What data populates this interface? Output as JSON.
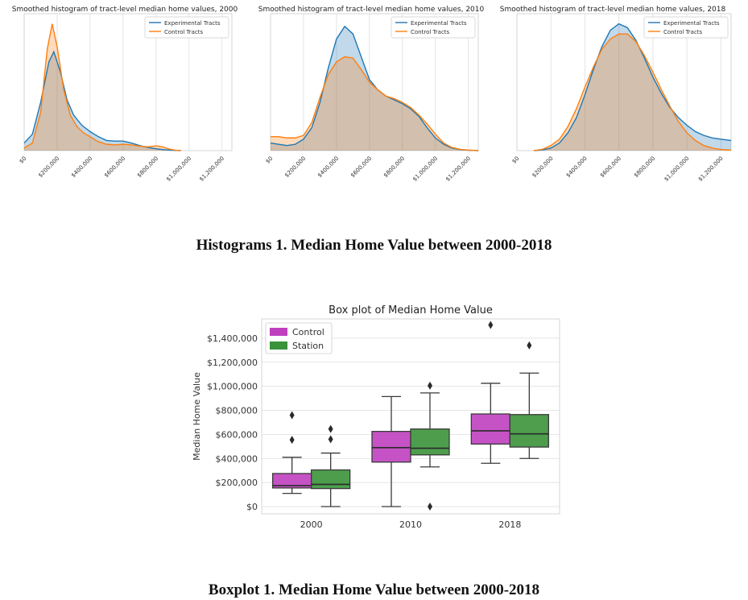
{
  "chart_data": [
    {
      "type": "area",
      "title": "Smoothed histogram of tract-level median home values, 2000",
      "xlabel": "",
      "ylabel": "",
      "xlim": [
        0,
        1260000
      ],
      "x_tick_labels": [
        "$0",
        "$200,000",
        "$400,000",
        "$600,000",
        "$800,000",
        "$1,000,000",
        "$1,200,000"
      ],
      "x_ticks": [
        0,
        200000,
        400000,
        600000,
        800000,
        1000000,
        1200000
      ],
      "grid": true,
      "legend": "top-right",
      "series": [
        {
          "name": "Experimental Tracts",
          "color": "#1f77b4",
          "points": [
            [
              0,
              0.06
            ],
            [
              50000,
              0.13
            ],
            [
              100000,
              0.38
            ],
            [
              150000,
              0.7
            ],
            [
              180000,
              0.78
            ],
            [
              220000,
              0.62
            ],
            [
              260000,
              0.4
            ],
            [
              300000,
              0.28
            ],
            [
              350000,
              0.2
            ],
            [
              400000,
              0.15
            ],
            [
              450000,
              0.11
            ],
            [
              500000,
              0.08
            ],
            [
              550000,
              0.075
            ],
            [
              600000,
              0.075
            ],
            [
              650000,
              0.06
            ],
            [
              700000,
              0.04
            ],
            [
              750000,
              0.025
            ],
            [
              800000,
              0.015
            ],
            [
              850000,
              0.007
            ],
            [
              900000,
              0.003
            ],
            [
              950000,
              0
            ]
          ]
        },
        {
          "name": "Control Tracts",
          "color": "#ff7f0e",
          "points": [
            [
              0,
              0.02
            ],
            [
              50000,
              0.06
            ],
            [
              100000,
              0.3
            ],
            [
              140000,
              0.8
            ],
            [
              170000,
              1.0
            ],
            [
              200000,
              0.82
            ],
            [
              240000,
              0.48
            ],
            [
              280000,
              0.28
            ],
            [
              320000,
              0.19
            ],
            [
              360000,
              0.14
            ],
            [
              400000,
              0.11
            ],
            [
              450000,
              0.07
            ],
            [
              500000,
              0.05
            ],
            [
              550000,
              0.045
            ],
            [
              600000,
              0.05
            ],
            [
              650000,
              0.045
            ],
            [
              700000,
              0.035
            ],
            [
              750000,
              0.03
            ],
            [
              800000,
              0.038
            ],
            [
              840000,
              0.03
            ],
            [
              880000,
              0.012
            ],
            [
              920000,
              0.003
            ],
            [
              950000,
              0
            ]
          ]
        }
      ]
    },
    {
      "type": "area",
      "title": "Smoothed histogram of tract-level median home values, 2010",
      "xlabel": "",
      "ylabel": "",
      "xlim": [
        0,
        1260000
      ],
      "x_tick_labels": [
        "$0",
        "$200,000",
        "$400,000",
        "$600,000",
        "$800,000",
        "$1,000,000",
        "$1,200,000"
      ],
      "x_ticks": [
        0,
        200000,
        400000,
        600000,
        800000,
        1000000,
        1200000
      ],
      "grid": true,
      "legend": "top-right",
      "series": [
        {
          "name": "Experimental Tracts",
          "color": "#1f77b4",
          "points": [
            [
              0,
              0.06
            ],
            [
              50000,
              0.05
            ],
            [
              100000,
              0.04
            ],
            [
              150000,
              0.05
            ],
            [
              200000,
              0.09
            ],
            [
              250000,
              0.18
            ],
            [
              300000,
              0.38
            ],
            [
              350000,
              0.65
            ],
            [
              400000,
              0.88
            ],
            [
              450000,
              0.98
            ],
            [
              500000,
              0.92
            ],
            [
              550000,
              0.74
            ],
            [
              600000,
              0.56
            ],
            [
              650000,
              0.48
            ],
            [
              700000,
              0.43
            ],
            [
              750000,
              0.4
            ],
            [
              800000,
              0.37
            ],
            [
              850000,
              0.33
            ],
            [
              900000,
              0.27
            ],
            [
              950000,
              0.18
            ],
            [
              1000000,
              0.1
            ],
            [
              1050000,
              0.05
            ],
            [
              1100000,
              0.02
            ],
            [
              1150000,
              0.008
            ],
            [
              1200000,
              0.003
            ],
            [
              1260000,
              0
            ]
          ]
        },
        {
          "name": "Control Tracts",
          "color": "#ff7f0e",
          "points": [
            [
              0,
              0.11
            ],
            [
              50000,
              0.11
            ],
            [
              100000,
              0.1
            ],
            [
              150000,
              0.1
            ],
            [
              200000,
              0.12
            ],
            [
              250000,
              0.22
            ],
            [
              300000,
              0.42
            ],
            [
              350000,
              0.6
            ],
            [
              400000,
              0.7
            ],
            [
              450000,
              0.74
            ],
            [
              500000,
              0.73
            ],
            [
              550000,
              0.64
            ],
            [
              600000,
              0.54
            ],
            [
              650000,
              0.48
            ],
            [
              700000,
              0.43
            ],
            [
              750000,
              0.41
            ],
            [
              800000,
              0.38
            ],
            [
              850000,
              0.34
            ],
            [
              900000,
              0.28
            ],
            [
              950000,
              0.21
            ],
            [
              1000000,
              0.13
            ],
            [
              1050000,
              0.06
            ],
            [
              1100000,
              0.025
            ],
            [
              1150000,
              0.01
            ],
            [
              1200000,
              0.004
            ],
            [
              1260000,
              0
            ]
          ]
        }
      ]
    },
    {
      "type": "area",
      "title": "Smoothed histogram of tract-level median home values, 2018",
      "xlabel": "",
      "ylabel": "",
      "xlim": [
        0,
        1260000
      ],
      "x_tick_labels": [
        "$0",
        "$200,000",
        "$400,000",
        "$600,000",
        "$800,000",
        "$1,000,000",
        "$1,200,000"
      ],
      "x_ticks": [
        0,
        200000,
        400000,
        600000,
        800000,
        1000000,
        1200000
      ],
      "grid": true,
      "legend": "top-right",
      "series": [
        {
          "name": "Experimental Tracts",
          "color": "#1f77b4",
          "points": [
            [
              100000,
              0
            ],
            [
              150000,
              0.005
            ],
            [
              200000,
              0.02
            ],
            [
              250000,
              0.06
            ],
            [
              300000,
              0.14
            ],
            [
              350000,
              0.26
            ],
            [
              400000,
              0.44
            ],
            [
              450000,
              0.64
            ],
            [
              500000,
              0.82
            ],
            [
              550000,
              0.95
            ],
            [
              600000,
              1.0
            ],
            [
              650000,
              0.97
            ],
            [
              700000,
              0.87
            ],
            [
              750000,
              0.73
            ],
            [
              800000,
              0.58
            ],
            [
              850000,
              0.45
            ],
            [
              900000,
              0.34
            ],
            [
              950000,
              0.26
            ],
            [
              1000000,
              0.2
            ],
            [
              1050000,
              0.15
            ],
            [
              1100000,
              0.12
            ],
            [
              1150000,
              0.1
            ],
            [
              1200000,
              0.09
            ],
            [
              1260000,
              0.08
            ]
          ]
        },
        {
          "name": "Control Tracts",
          "color": "#ff7f0e",
          "points": [
            [
              100000,
              0
            ],
            [
              150000,
              0.01
            ],
            [
              200000,
              0.04
            ],
            [
              250000,
              0.09
            ],
            [
              300000,
              0.19
            ],
            [
              350000,
              0.33
            ],
            [
              400000,
              0.5
            ],
            [
              450000,
              0.66
            ],
            [
              500000,
              0.8
            ],
            [
              550000,
              0.88
            ],
            [
              600000,
              0.92
            ],
            [
              650000,
              0.92
            ],
            [
              700000,
              0.86
            ],
            [
              750000,
              0.75
            ],
            [
              800000,
              0.62
            ],
            [
              850000,
              0.48
            ],
            [
              900000,
              0.35
            ],
            [
              950000,
              0.23
            ],
            [
              1000000,
              0.14
            ],
            [
              1050000,
              0.08
            ],
            [
              1100000,
              0.04
            ],
            [
              1150000,
              0.02
            ],
            [
              1200000,
              0.008
            ],
            [
              1260000,
              0.004
            ]
          ]
        }
      ]
    },
    {
      "type": "box",
      "title": "Box plot of Median Home Value",
      "xlabel": "",
      "ylabel": "Median Home Value",
      "ylim": [
        -60000,
        1560000
      ],
      "y_ticks": [
        0,
        200000,
        400000,
        600000,
        800000,
        1000000,
        1200000,
        1400000
      ],
      "y_tick_labels": [
        "$0",
        "$200,000",
        "$400,000",
        "$600,000",
        "$800,000",
        "$1,000,000",
        "$1,200,000",
        "$1,400,000"
      ],
      "categories": [
        "2000",
        "2010",
        "2018"
      ],
      "grid": true,
      "legend": "top-left",
      "series": [
        {
          "name": "Control",
          "color": "#bf40bf",
          "boxes": [
            {
              "whisker_low": 110000,
              "q1": 155000,
              "median": 175000,
              "q3": 275000,
              "whisker_high": 410000,
              "outliers": [
                555000,
                760000
              ]
            },
            {
              "whisker_low": 0,
              "q1": 370000,
              "median": 490000,
              "q3": 625000,
              "whisker_high": 915000,
              "outliers": []
            },
            {
              "whisker_low": 360000,
              "q1": 520000,
              "median": 630000,
              "q3": 770000,
              "whisker_high": 1025000,
              "outliers": [
                1510000
              ]
            }
          ]
        },
        {
          "name": "Station",
          "color": "#3a923a",
          "boxes": [
            {
              "whisker_low": 0,
              "q1": 150000,
              "median": 185000,
              "q3": 305000,
              "whisker_high": 445000,
              "outliers": [
                560000,
                645000
              ]
            },
            {
              "whisker_low": 330000,
              "q1": 430000,
              "median": 485000,
              "q3": 645000,
              "whisker_high": 945000,
              "outliers": [
                0,
                1005000
              ]
            },
            {
              "whisker_low": 400000,
              "q1": 495000,
              "median": 605000,
              "q3": 765000,
              "whisker_high": 1110000,
              "outliers": [
                1340000
              ]
            }
          ]
        }
      ]
    }
  ],
  "captions": {
    "histograms": "Histograms 1. Median Home Value between 2000-2018",
    "boxplot": "Boxplot 1. Median Home Value between 2000-2018"
  }
}
